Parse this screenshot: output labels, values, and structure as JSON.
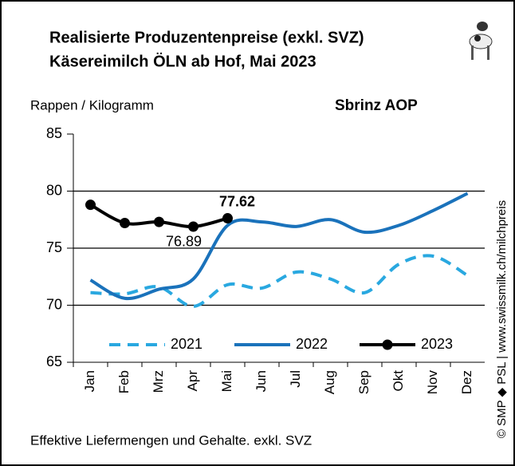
{
  "chart_data": {
    "type": "line",
    "title": "Realisierte Produzentenpreise (exkl. SVZ)",
    "subtitle": "Käsereimilch ÖLN ab Hof, Mai 2023",
    "chart_label": "Sbrinz AOP",
    "ylabel": "Rappen / Kilogramm",
    "footnote": "Effektive Liefermengen und Gehalte. exkl. SVZ",
    "source": "© SMP ◆ PSL | www.swissmilk.ch/milchpreis",
    "categories": [
      "Jan",
      "Feb",
      "Mrz",
      "Apr",
      "Mai",
      "Jun",
      "Jul",
      "Aug",
      "Sep",
      "Okt",
      "Nov",
      "Dez"
    ],
    "series": [
      {
        "name": "2021",
        "color": "#29a8e0",
        "dashed": true,
        "markers": false,
        "values": [
          71.1,
          71.0,
          71.6,
          69.9,
          71.8,
          71.5,
          72.9,
          72.3,
          71.1,
          73.6,
          74.3,
          72.6
        ]
      },
      {
        "name": "2022",
        "color": "#1a72bb",
        "dashed": false,
        "markers": false,
        "values": [
          72.2,
          70.6,
          71.4,
          72.3,
          77.0,
          77.3,
          76.9,
          77.5,
          76.4,
          77.0,
          78.3,
          79.8
        ]
      },
      {
        "name": "2023",
        "color": "#000000",
        "dashed": false,
        "markers": true,
        "values": [
          78.8,
          77.2,
          77.3,
          76.89,
          77.62,
          null,
          null,
          null,
          null,
          null,
          null,
          null
        ],
        "value_labels": [
          null,
          null,
          null,
          "76.89",
          "77.62",
          null,
          null,
          null,
          null,
          null,
          null,
          null
        ]
      }
    ],
    "ylim": [
      65,
      85
    ],
    "yticks": [
      65,
      70,
      75,
      80,
      85
    ],
    "grid": true,
    "legend": "lower center"
  }
}
